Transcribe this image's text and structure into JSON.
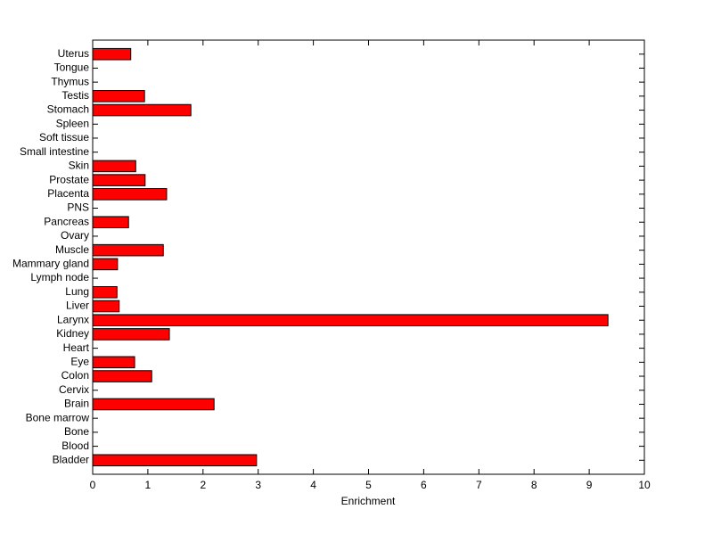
{
  "chart_data": {
    "type": "barh",
    "categories": [
      "Bladder",
      "Blood",
      "Bone",
      "Bone marrow",
      "Brain",
      "Cervix",
      "Colon",
      "Eye",
      "Heart",
      "Kidney",
      "Larynx",
      "Liver",
      "Lung",
      "Lymph node",
      "Mammary gland",
      "Muscle",
      "Ovary",
      "Pancreas",
      "PNS",
      "Placenta",
      "Prostate",
      "Skin",
      "Small intestine",
      "Soft tissue",
      "Spleen",
      "Stomach",
      "Testis",
      "Thymus",
      "Tongue",
      "Uterus"
    ],
    "values": [
      2.97,
      0,
      0,
      0,
      2.2,
      0,
      1.07,
      0.76,
      0,
      1.39,
      9.34,
      0.48,
      0.44,
      0,
      0.45,
      1.28,
      0,
      0.65,
      0,
      1.34,
      0.95,
      0.78,
      0,
      0,
      0,
      1.78,
      0.94,
      0,
      0,
      0.69
    ],
    "color": "#ff0000",
    "xlabel": "Enrichment",
    "xlim": [
      0,
      10
    ],
    "xticks": [
      0,
      1,
      2,
      3,
      4,
      5,
      6,
      7,
      8,
      9,
      10
    ],
    "grid": false
  }
}
